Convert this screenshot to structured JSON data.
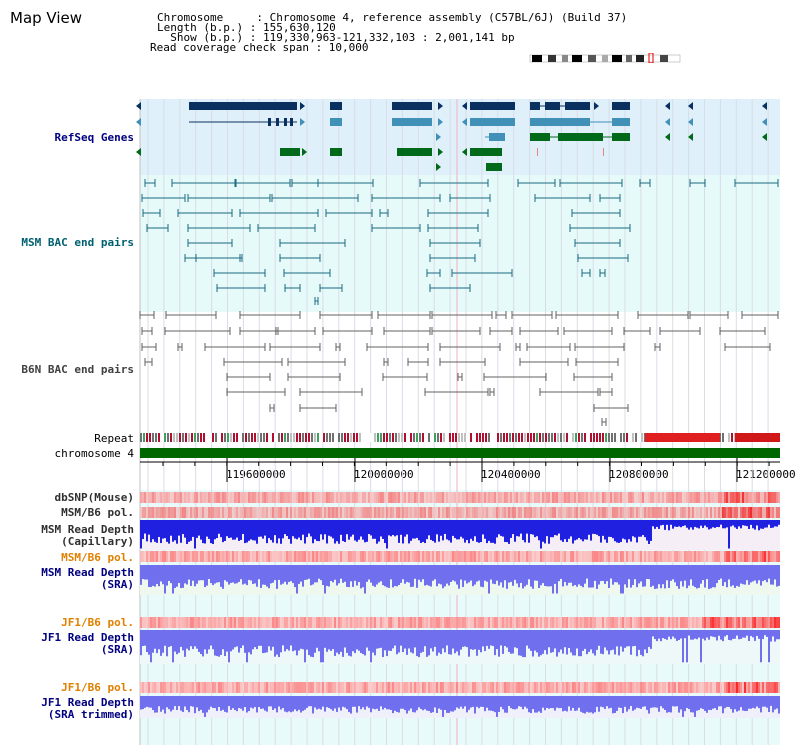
{
  "title": "Map View",
  "info": {
    "chromosome_line": "Chromosome     : Chromosome 4, reference assembly (C57BL/6J) (Build 37)",
    "length_line": "Length (b.p.) : 155,630,120",
    "show_line": "  Show (b.p.) : 119,330,963-121,332,103 : 2,001,141 bp",
    "coverage_line": "Read coverage check span : 10,000"
  },
  "tracks": {
    "refseq": "RefSeq Genes",
    "msm_bac": "MSM BAC end pairs",
    "b6n_bac": "B6N BAC end pairs",
    "repeat": "Repeat",
    "chromosome": "chromosome 4",
    "dbsnp": "dbSNP(Mouse)",
    "msm_b6_pol_1": "MSM/B6 pol.",
    "msm_read_depth_cap_1": "MSM Read Depth",
    "msm_read_depth_cap_2": "(Capillary)",
    "msm_b6_pol_2": "MSM/B6 pol.",
    "msm_read_depth_sra_1": "MSM Read Depth",
    "msm_read_depth_sra_2": "(SRA)",
    "jf1_b6_pol_1": "JF1/B6 pol.",
    "jf1_read_depth_sra_1": "JF1 Read Depth",
    "jf1_read_depth_sra_2": "(SRA)",
    "jf1_b6_pol_2": "JF1/B6 pol.",
    "jf1_read_depth_trim_1": "JF1 Read Depth",
    "jf1_read_depth_trim_2": "(SRA trimmed)"
  },
  "axis_ticks": [
    "119600000",
    "120000000",
    "120400000",
    "120800000",
    "121200000"
  ],
  "colors": {
    "refseq_bg": "#dff0fa",
    "bac_bg": "#e6fafa",
    "gene_navy": "#0a3060",
    "gene_blue": "#4090b8",
    "gene_green": "#006a1a",
    "bac_teal": "#1a6a80",
    "bac_gray": "#606060",
    "chromosome_green": "#006600",
    "depth_blue": "#2020e0",
    "depth_light": "#7070ee",
    "pol_red": "#e03030"
  }
}
